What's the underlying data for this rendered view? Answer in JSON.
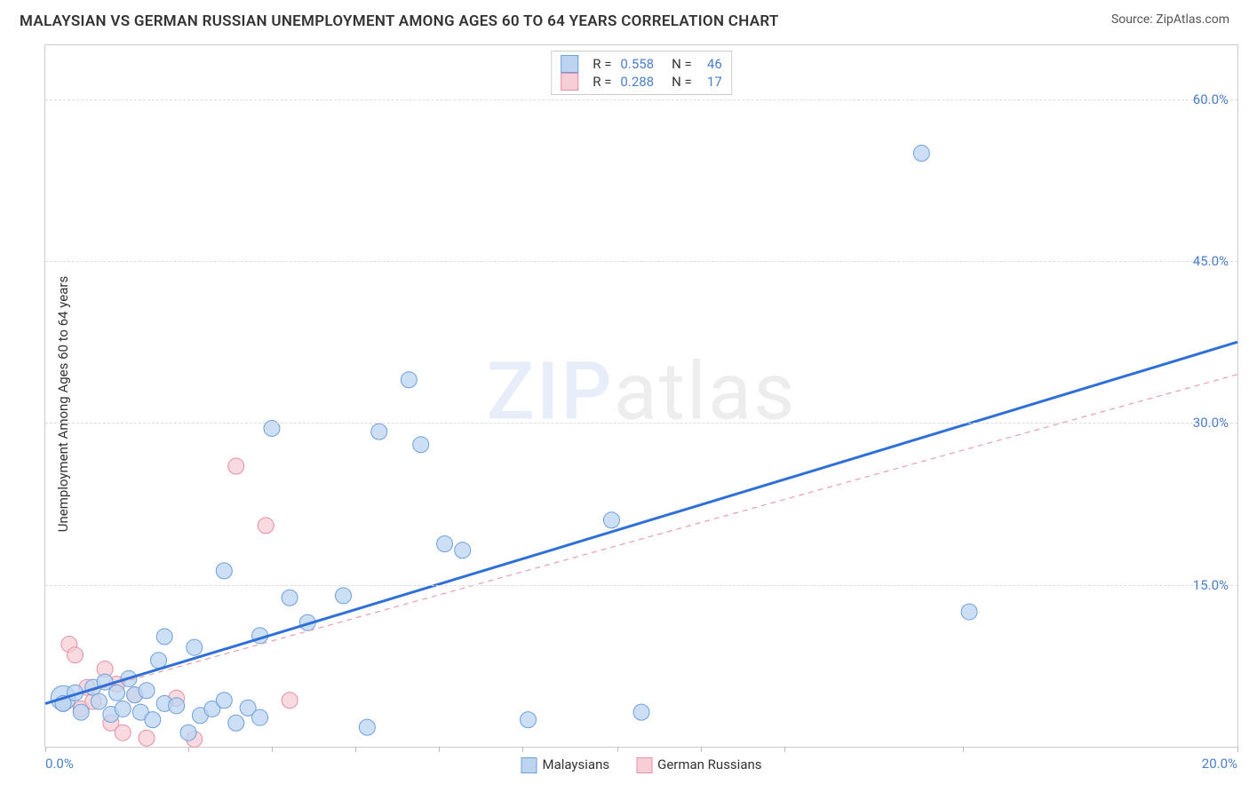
{
  "header": {
    "title": "MALAYSIAN VS GERMAN RUSSIAN UNEMPLOYMENT AMONG AGES 60 TO 64 YEARS CORRELATION CHART",
    "source_label": "Source:",
    "source_value": "ZipAtlas.com"
  },
  "chart": {
    "type": "scatter",
    "ylabel": "Unemployment Among Ages 60 to 64 years",
    "xlim": [
      0,
      20
    ],
    "ylim": [
      0,
      65
    ],
    "xticks_pct": [
      0,
      12,
      19,
      26,
      33,
      40,
      48,
      55,
      62,
      77,
      100
    ],
    "xaxis_labels": {
      "min": "0.0%",
      "max": "20.0%"
    },
    "yticks": [
      {
        "v": 15,
        "label": "15.0%"
      },
      {
        "v": 30,
        "label": "30.0%"
      },
      {
        "v": 45,
        "label": "45.0%"
      },
      {
        "v": 60,
        "label": "60.0%"
      }
    ],
    "grid_color": "#dddddd",
    "background_color": "#ffffff",
    "marker_radius": 9,
    "marker_radius_big": 14,
    "series": {
      "malaysians": {
        "label": "Malaysians",
        "fill": "#bcd4f0",
        "stroke": "#6c9fde",
        "line_color": "#2f6fd8",
        "line_width": 3,
        "line_dash": "",
        "R": "0.558",
        "N": "46",
        "trend": {
          "x1": 0,
          "y1": 4,
          "x2": 20,
          "y2": 37.5
        },
        "points": [
          [
            0.3,
            4
          ],
          [
            0.5,
            5
          ],
          [
            0.6,
            3.2
          ],
          [
            0.8,
            5.5
          ],
          [
            0.9,
            4.2
          ],
          [
            1.0,
            6
          ],
          [
            1.1,
            3
          ],
          [
            1.2,
            5
          ],
          [
            1.3,
            3.5
          ],
          [
            1.4,
            6.3
          ],
          [
            1.5,
            4.8
          ],
          [
            1.6,
            3.2
          ],
          [
            1.7,
            5.2
          ],
          [
            1.8,
            2.5
          ],
          [
            1.9,
            8
          ],
          [
            2.0,
            4
          ],
          [
            2.0,
            10.2
          ],
          [
            2.2,
            3.8
          ],
          [
            2.4,
            1.3
          ],
          [
            2.5,
            9.2
          ],
          [
            2.6,
            2.9
          ],
          [
            2.8,
            3.5
          ],
          [
            3.0,
            4.3
          ],
          [
            3.0,
            16.3
          ],
          [
            3.2,
            2.2
          ],
          [
            3.4,
            3.6
          ],
          [
            3.6,
            10.3
          ],
          [
            3.6,
            2.7
          ],
          [
            3.8,
            29.5
          ],
          [
            4.1,
            13.8
          ],
          [
            4.4,
            11.5
          ],
          [
            5.0,
            14
          ],
          [
            5.4,
            1.8
          ],
          [
            5.6,
            29.2
          ],
          [
            6.1,
            34
          ],
          [
            6.3,
            28
          ],
          [
            6.7,
            18.8
          ],
          [
            7.0,
            18.2
          ],
          [
            8.1,
            2.5
          ],
          [
            9.5,
            21
          ],
          [
            10.0,
            3.2
          ],
          [
            14.7,
            55
          ],
          [
            15.5,
            12.5
          ]
        ],
        "big_point": [
          0.3,
          4.5
        ]
      },
      "german_russians": {
        "label": "German Russians",
        "fill": "#f7cdd6",
        "stroke": "#e68fa3",
        "line_color": "#e99eb0",
        "line_width": 1.2,
        "line_dash": "6 5",
        "R": "0.288",
        "N": "17",
        "trend": {
          "x1": 0,
          "y1": 4,
          "x2": 20,
          "y2": 34.5
        },
        "points": [
          [
            0.3,
            4
          ],
          [
            0.4,
            9.5
          ],
          [
            0.5,
            8.5
          ],
          [
            0.6,
            3.5
          ],
          [
            0.7,
            5.5
          ],
          [
            0.8,
            4.2
          ],
          [
            1.0,
            7.2
          ],
          [
            1.1,
            2.2
          ],
          [
            1.2,
            5.8
          ],
          [
            1.3,
            1.3
          ],
          [
            1.5,
            4.8
          ],
          [
            1.7,
            0.8
          ],
          [
            2.2,
            4.5
          ],
          [
            2.5,
            0.7
          ],
          [
            3.2,
            26
          ],
          [
            3.7,
            20.5
          ],
          [
            4.1,
            4.3
          ]
        ]
      }
    },
    "watermark": {
      "zip": "ZIP",
      "atlas": "atlas"
    },
    "colors": {
      "title": "#333333",
      "axis_value": "#4a7ec8",
      "border": "#cccccc"
    },
    "canvas": {
      "label_fontsize": 15,
      "title_fontsize": 17
    }
  },
  "bottom_legend": [
    {
      "key": "malaysians"
    },
    {
      "key": "german_russians"
    }
  ],
  "top_legend_rows": [
    {
      "key": "malaysians"
    },
    {
      "key": "german_russians"
    }
  ]
}
